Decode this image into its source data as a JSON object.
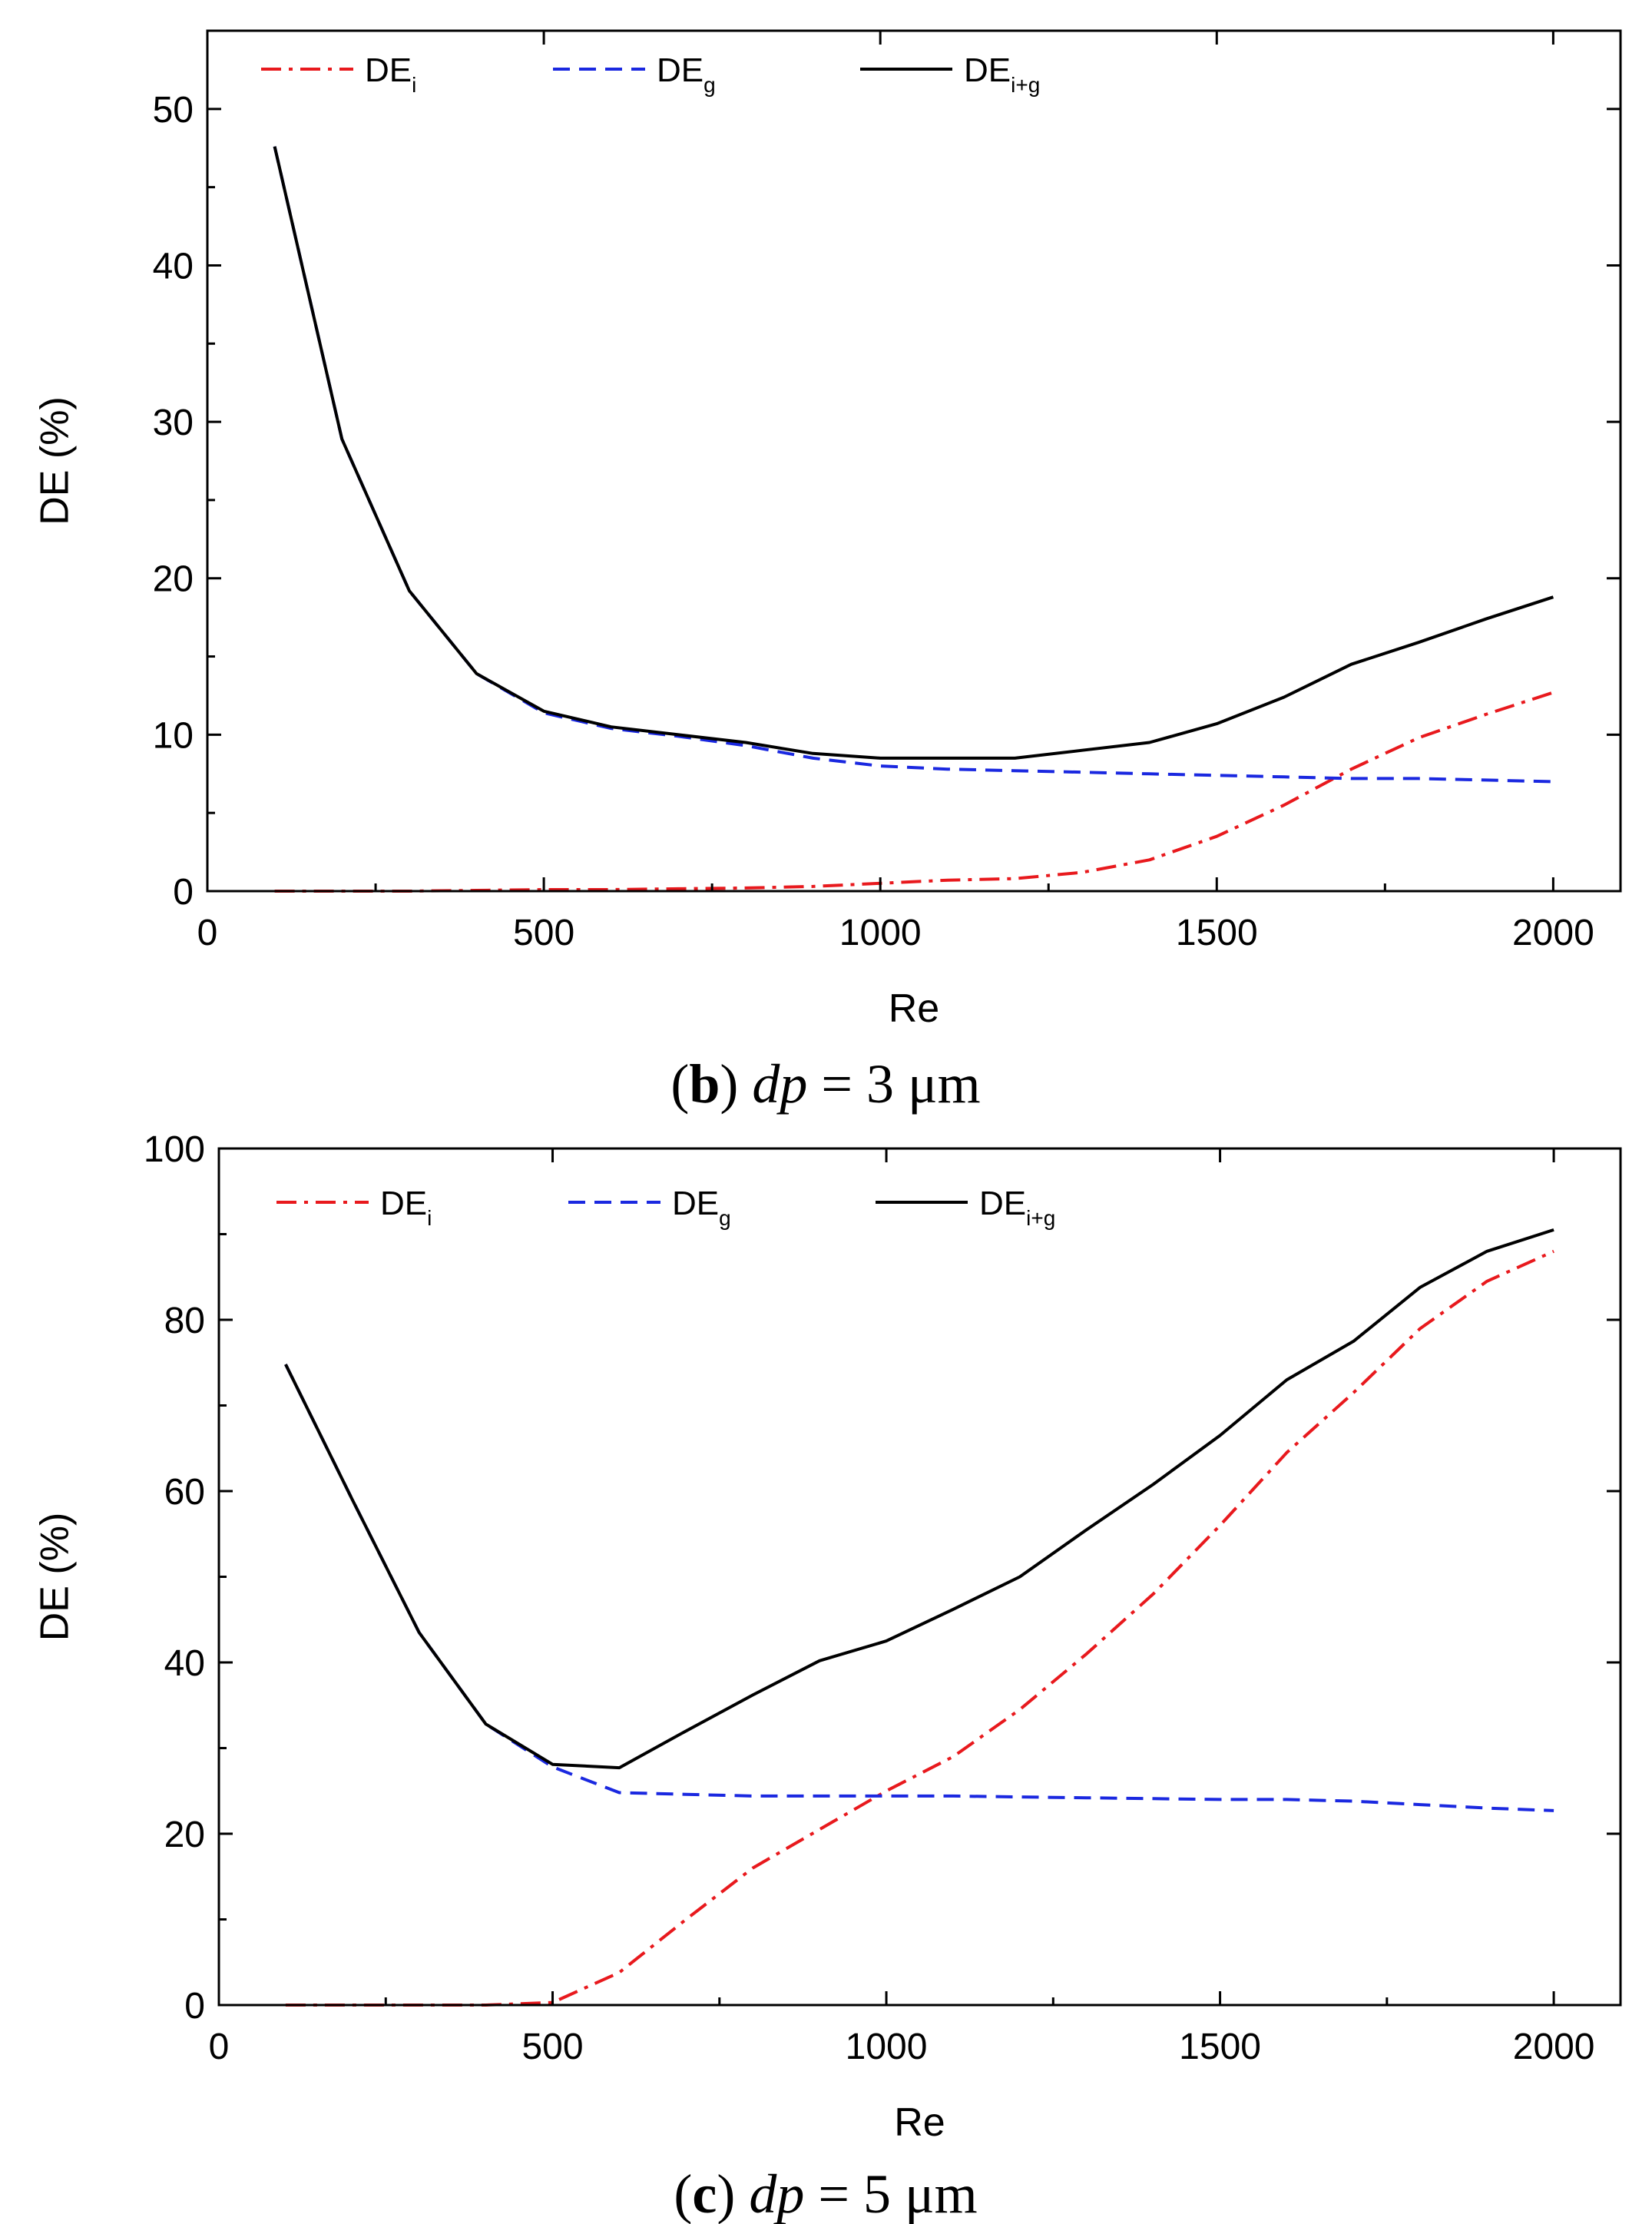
{
  "chart_data": [
    {
      "type": "line",
      "caption": {
        "panel": "b",
        "variable": "dp",
        "equals": " = ",
        "value": "3 μm"
      },
      "xlabel": "Re",
      "ylabel": "DE (%)",
      "xlim": [
        0,
        2100
      ],
      "ylim": [
        0,
        55
      ],
      "xticks": [
        0,
        500,
        1000,
        1500,
        2000
      ],
      "yticks": [
        0,
        10,
        20,
        30,
        40,
        50
      ],
      "legend_position": "top-left",
      "series": [
        {
          "name": "DE_i",
          "base": "DE",
          "sub": "i",
          "color": "#e8191d",
          "style": "dashdot",
          "x": [
            100,
            200,
            300,
            400,
            500,
            600,
            700,
            800,
            900,
            1000,
            1100,
            1200,
            1300,
            1400,
            1500,
            1600,
            1700,
            1800,
            1900,
            2000
          ],
          "y": [
            0,
            0,
            0,
            0.05,
            0.1,
            0.1,
            0.15,
            0.2,
            0.3,
            0.5,
            0.7,
            0.8,
            1.2,
            2.0,
            3.5,
            5.5,
            7.8,
            9.8,
            11.3,
            12.7
          ]
        },
        {
          "name": "DE_g",
          "base": "DE",
          "sub": "g",
          "color": "#1a28e0",
          "style": "dashed",
          "x": [
            100,
            200,
            300,
            400,
            500,
            600,
            700,
            800,
            900,
            1000,
            1100,
            1200,
            1300,
            1400,
            1500,
            1600,
            1700,
            1800,
            1900,
            2000
          ],
          "y": [
            47.6,
            28.9,
            19.2,
            13.9,
            11.4,
            10.4,
            9.9,
            9.3,
            8.5,
            8.0,
            7.8,
            7.7,
            7.6,
            7.5,
            7.4,
            7.3,
            7.2,
            7.2,
            7.1,
            7.0
          ]
        },
        {
          "name": "DE_i+g",
          "base": "DE",
          "sub": "i+g",
          "color": "#000000",
          "style": "solid",
          "x": [
            100,
            200,
            300,
            400,
            500,
            600,
            700,
            800,
            900,
            1000,
            1100,
            1200,
            1300,
            1400,
            1500,
            1600,
            1700,
            1800,
            1900,
            2000
          ],
          "y": [
            47.6,
            28.9,
            19.2,
            13.9,
            11.5,
            10.5,
            10.0,
            9.5,
            8.8,
            8.5,
            8.5,
            8.5,
            9.0,
            9.5,
            10.7,
            12.4,
            14.5,
            15.9,
            17.4,
            18.8
          ]
        }
      ]
    },
    {
      "type": "line",
      "caption": {
        "panel": "c",
        "variable": "dp",
        "equals": " = ",
        "value": "5 μm"
      },
      "xlabel": "Re",
      "ylabel": "DE (%)",
      "xlim": [
        0,
        2100
      ],
      "ylim": [
        0,
        100
      ],
      "xticks": [
        0,
        500,
        1000,
        1500,
        2000
      ],
      "yticks": [
        0,
        20,
        40,
        60,
        80,
        100
      ],
      "legend_position": "top-left",
      "series": [
        {
          "name": "DE_i",
          "base": "DE",
          "sub": "i",
          "color": "#e8191d",
          "style": "dashdot",
          "x": [
            100,
            200,
            300,
            400,
            500,
            600,
            700,
            800,
            900,
            1000,
            1100,
            1200,
            1300,
            1400,
            1500,
            1600,
            1700,
            1800,
            1900,
            2000
          ],
          "y": [
            0,
            0,
            0,
            0,
            0.3,
            3.8,
            10.0,
            16.0,
            20.5,
            25.0,
            29.0,
            34.5,
            41.0,
            48.0,
            56.0,
            64.5,
            71.5,
            79.0,
            84.5,
            88.0
          ]
        },
        {
          "name": "DE_g",
          "base": "DE",
          "sub": "g",
          "color": "#1a28e0",
          "style": "dashed",
          "x": [
            100,
            200,
            300,
            400,
            500,
            600,
            700,
            800,
            900,
            1000,
            1100,
            1200,
            1300,
            1400,
            1500,
            1600,
            1700,
            1800,
            1900,
            2000
          ],
          "y": [
            74.8,
            59.0,
            43.5,
            32.8,
            27.8,
            24.8,
            24.6,
            24.4,
            24.4,
            24.4,
            24.4,
            24.3,
            24.2,
            24.1,
            24.0,
            24.0,
            23.8,
            23.4,
            23.0,
            22.7
          ]
        },
        {
          "name": "DE_i+g",
          "base": "DE",
          "sub": "i+g",
          "color": "#000000",
          "style": "solid",
          "x": [
            100,
            200,
            300,
            400,
            500,
            600,
            700,
            800,
            900,
            1000,
            1100,
            1200,
            1300,
            1400,
            1500,
            1600,
            1700,
            1800,
            1900,
            2000
          ],
          "y": [
            74.8,
            59.0,
            43.5,
            32.8,
            28.1,
            27.7,
            32.0,
            36.2,
            40.2,
            42.5,
            46.2,
            50.0,
            55.5,
            60.8,
            66.5,
            73.0,
            77.5,
            83.8,
            88.0,
            90.5
          ]
        }
      ]
    }
  ]
}
